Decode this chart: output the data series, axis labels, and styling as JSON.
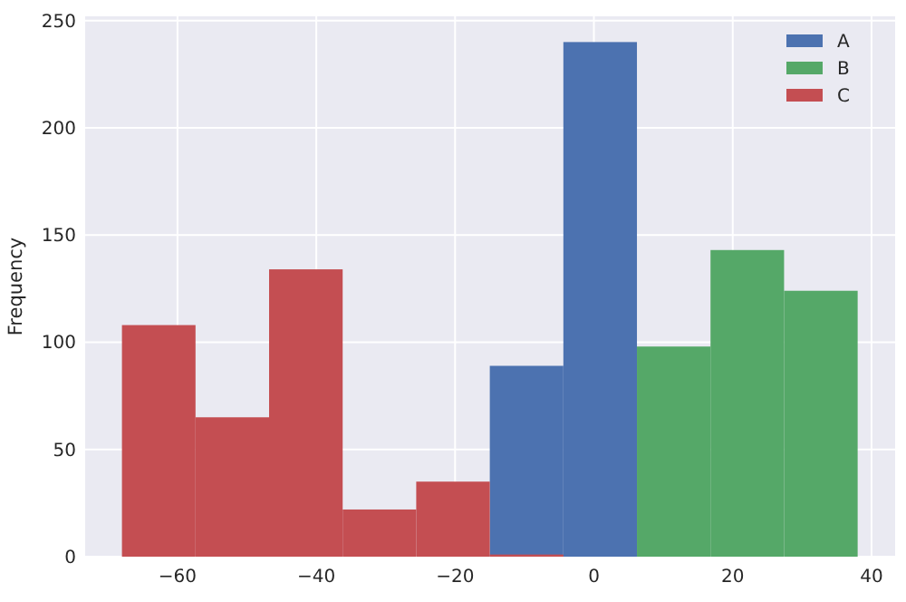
{
  "chart_data": {
    "type": "histogram",
    "ylabel": "Frequency",
    "bins": [
      -68,
      -57.4,
      -46.8,
      -36.2,
      -25.6,
      -15,
      -4.4,
      6.2,
      16.8,
      27.4,
      38
    ],
    "series": [
      {
        "name": "A",
        "color": "#4c72b0",
        "values": [
          0,
          0,
          0,
          0,
          0,
          89,
          240,
          0,
          0,
          0
        ]
      },
      {
        "name": "B",
        "color": "#55a868",
        "values": [
          0,
          0,
          0,
          0,
          0,
          0,
          0,
          98,
          143,
          124
        ]
      },
      {
        "name": "C",
        "color": "#c44e52",
        "values": [
          108,
          65,
          134,
          22,
          35,
          1,
          0,
          0,
          0,
          0
        ]
      }
    ],
    "xlim": [
      -73.3,
      43.4
    ],
    "xticks": [
      {
        "value": -60,
        "label": "−60"
      },
      {
        "value": -40,
        "label": "−40"
      },
      {
        "value": -20,
        "label": "−20"
      },
      0,
      20,
      40
    ],
    "ylim": [
      0,
      252
    ],
    "yticks": [
      0,
      50,
      100,
      150,
      200,
      250
    ],
    "grid": true,
    "legend": "top right"
  }
}
